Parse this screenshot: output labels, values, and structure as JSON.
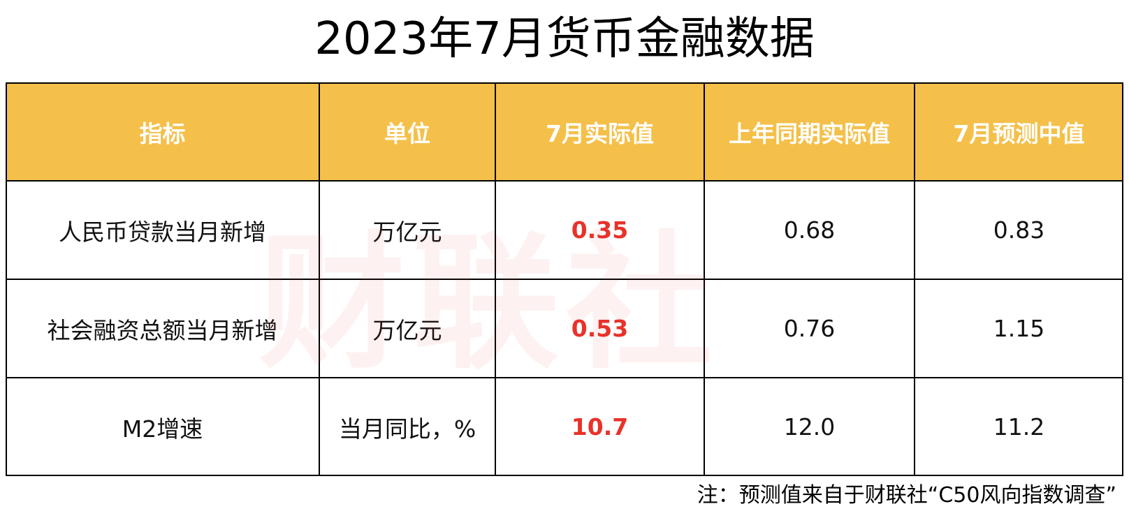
{
  "title": "2023年7月货币金融数据",
  "table": {
    "header": [
      "指标",
      "单位",
      "7月实际值",
      "上年同期实际值",
      "7月预测中值"
    ],
    "rows": [
      [
        "人民币贷款当月新增",
        "万亿元",
        "0.35",
        "0.68",
        "0.83"
      ],
      [
        "社会融资总额当月新增",
        "万亿元",
        "0.53",
        "0.76",
        "1.15"
      ],
      [
        "M2增速",
        "当月同比，%",
        "10.7",
        "12.0",
        "11.2"
      ]
    ]
  },
  "watermark": "财联社",
  "footnote": "注：预测值来自于财联社“C50风向指数调查”"
}
